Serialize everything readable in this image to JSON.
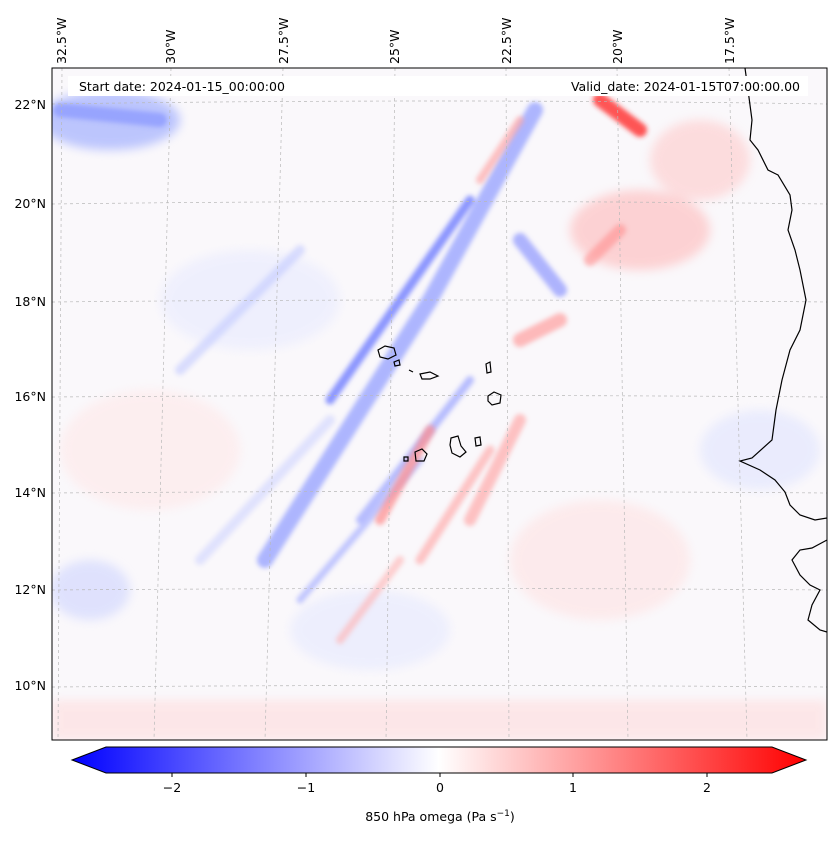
{
  "map": {
    "start_date": "Start date: 2024-01-15_00:00:00",
    "valid_date": "Valid_date: 2024-01-15T07:00:00.00",
    "lon_labels": [
      "32.5°W",
      "30°W",
      "27.5°W",
      "25°W",
      "22.5°W",
      "20°W",
      "17.5°W"
    ],
    "lat_labels": [
      "22°N",
      "20°N",
      "18°N",
      "16°N",
      "14°N",
      "12°N",
      "10°N"
    ],
    "colors": {
      "negative": "#0000ff",
      "zero": "#ffffff",
      "positive": "#ff0000",
      "coast": "#000000"
    }
  },
  "colorbar": {
    "ticks": [
      "−2",
      "−1",
      "0",
      "1",
      "2"
    ],
    "label_main": "850 hPa omega (Pa s",
    "label_sup": "−1",
    "label_end": ")"
  }
}
